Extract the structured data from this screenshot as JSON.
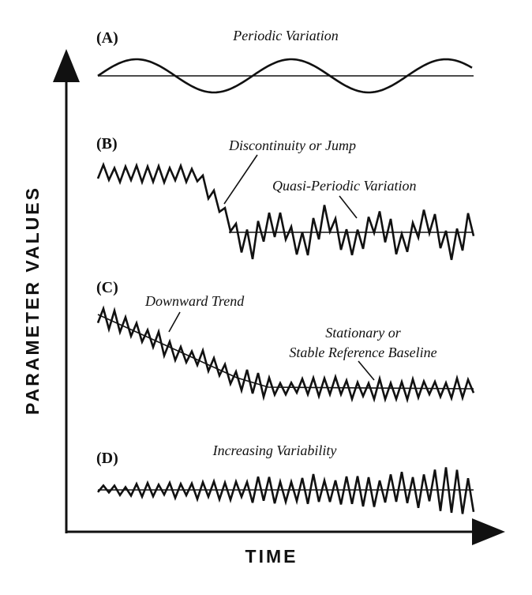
{
  "axes": {
    "y_label": "PARAMETER VALUES",
    "x_label": "TIME"
  },
  "panels": [
    {
      "letter": "(A)",
      "title": "Periodic Variation"
    },
    {
      "letter": "(B)",
      "labels": [
        "Discontinuity or Jump",
        "Quasi-Periodic Variation"
      ]
    },
    {
      "letter": "(C)",
      "labels": [
        "Downward Trend",
        "Stationary or",
        "Stable Reference Baseline"
      ]
    },
    {
      "letter": "(D)",
      "title": "Increasing Variability"
    }
  ],
  "colors": {
    "ink": "#111111",
    "background": "#ffffff"
  }
}
